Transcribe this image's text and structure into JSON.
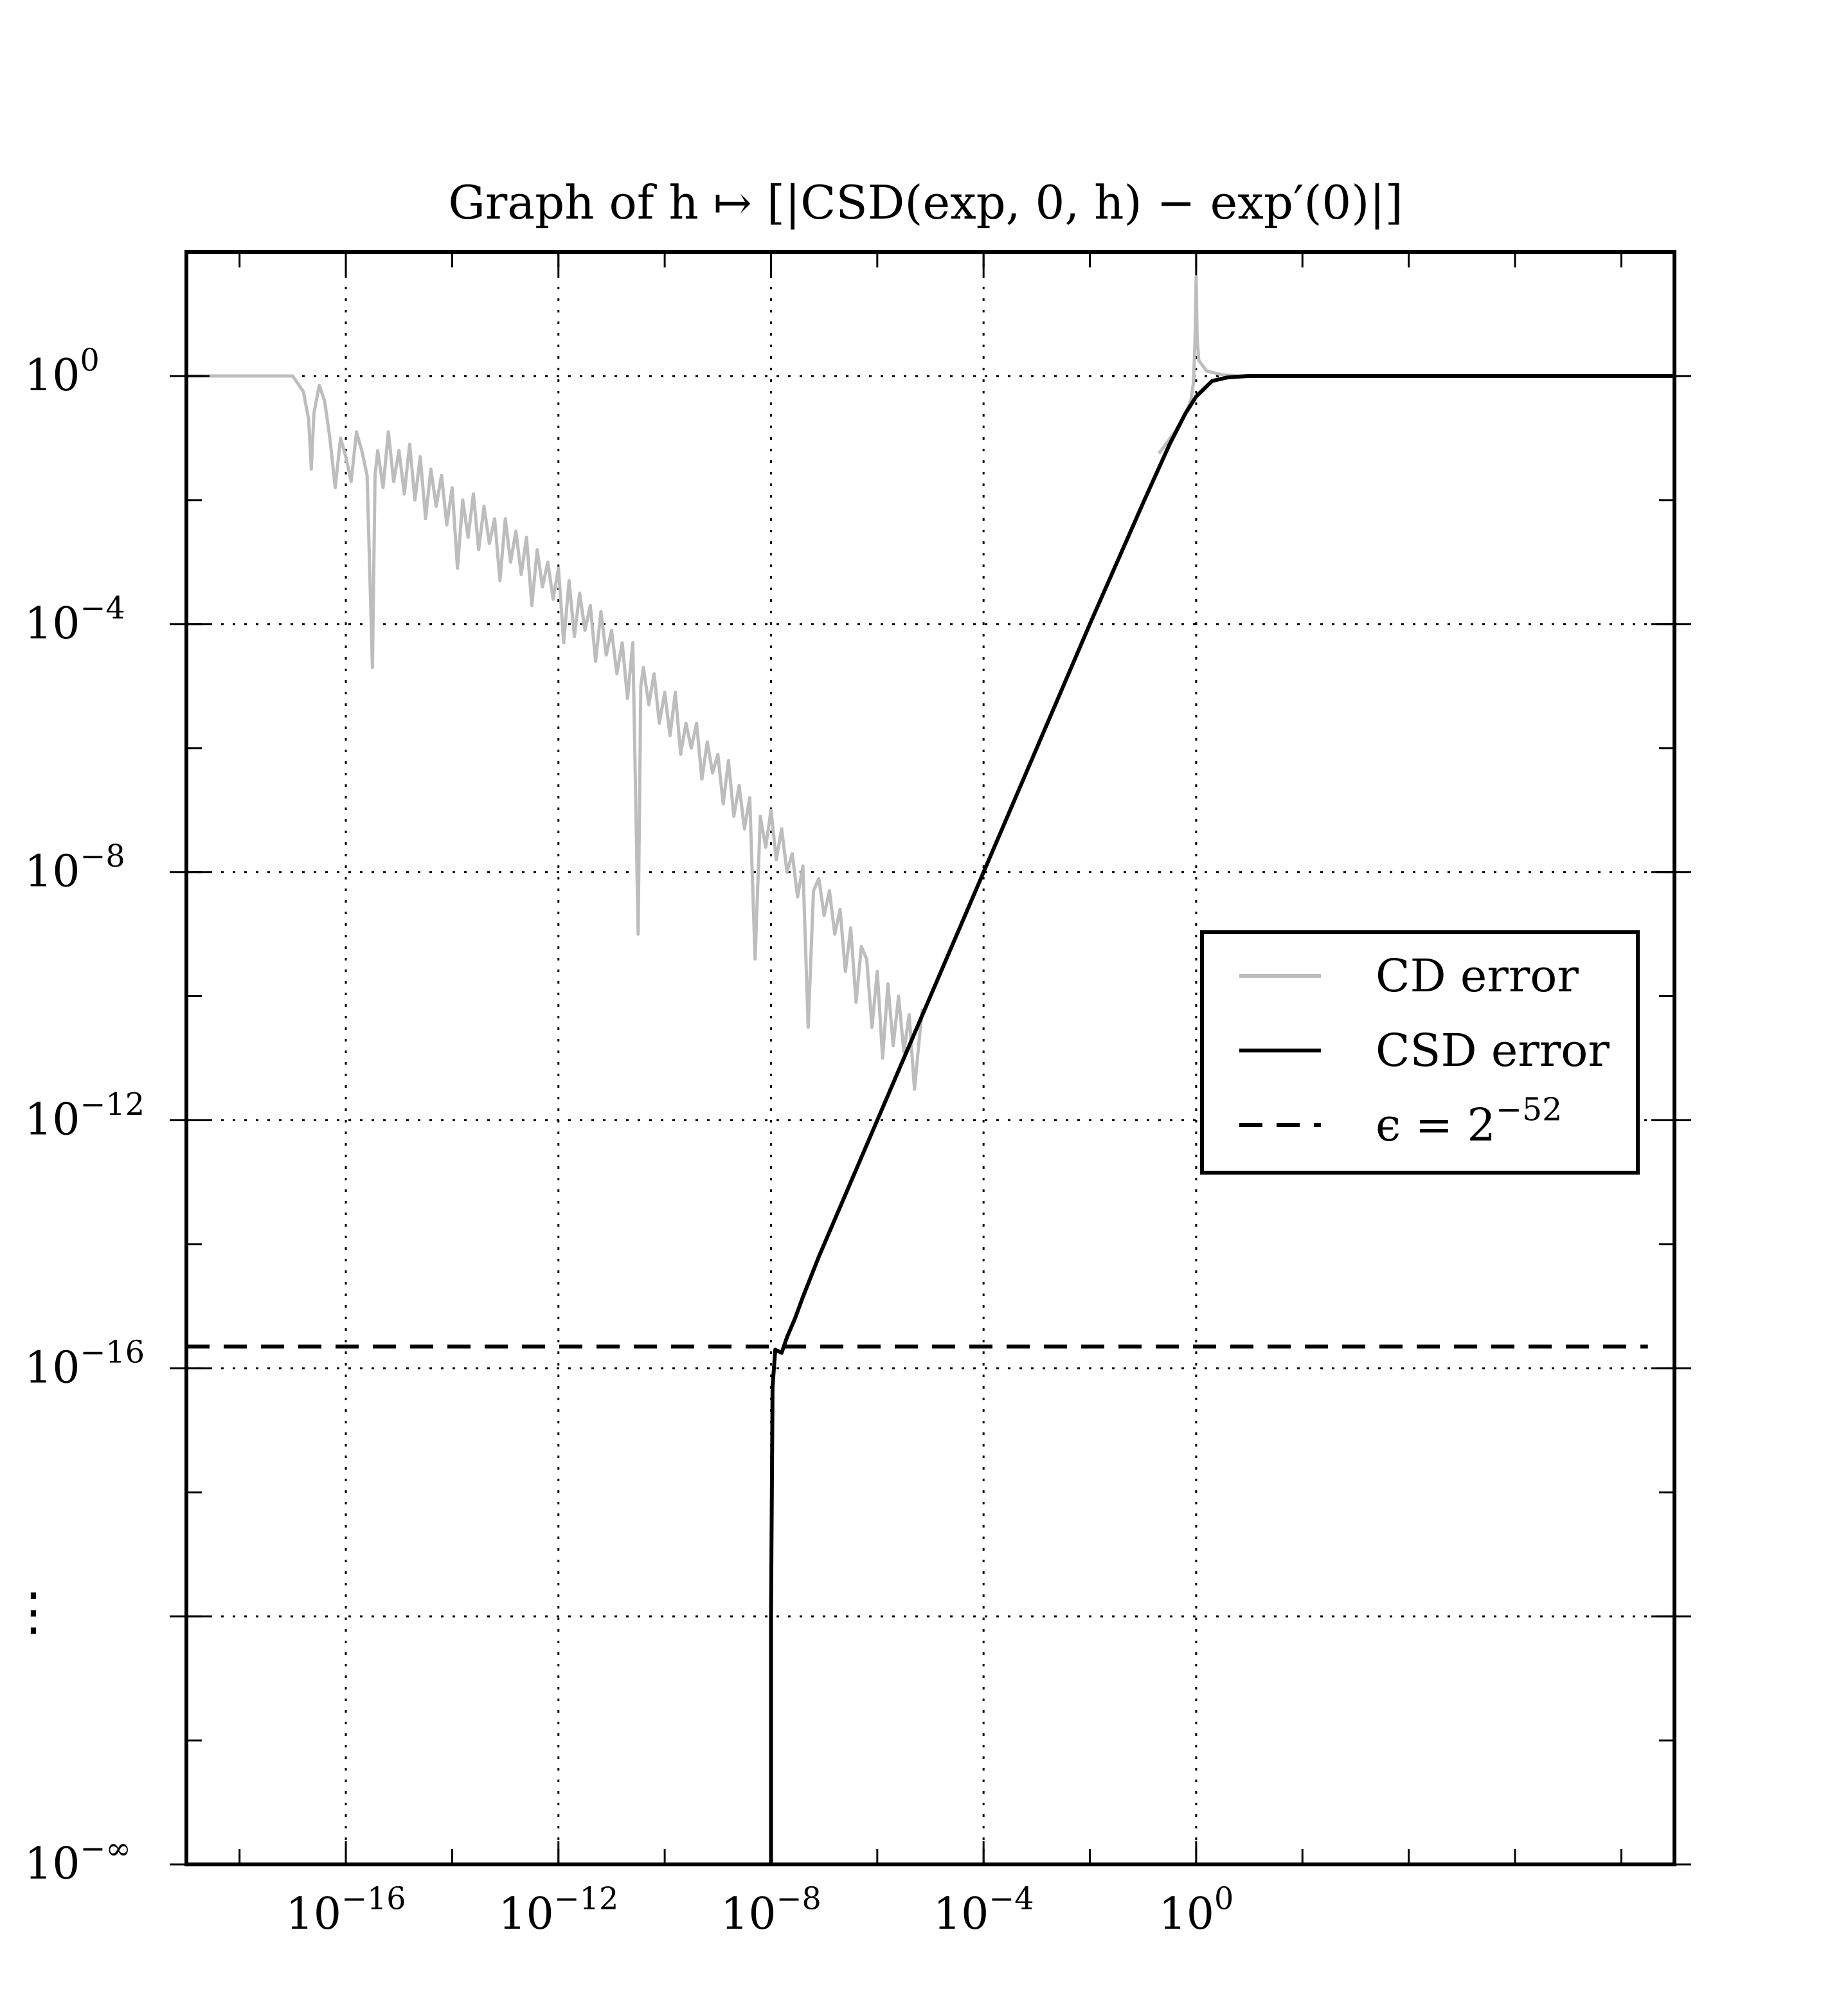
{
  "chart_data": {
    "type": "line",
    "title": "Graph of h ↦ [|CSD(exp, 0, h) − exp′(0)|]",
    "xlabel": "",
    "ylabel": "",
    "xscale": "log10",
    "yscale": "log10",
    "xlim": [
      -19,
      9
    ],
    "ylim": [
      -24,
      2
    ],
    "grid": true,
    "legend_position": "right-middle",
    "x_ticks": [
      {
        "value": -16,
        "base": "10",
        "exp": "−16"
      },
      {
        "value": -12,
        "base": "10",
        "exp": "−12"
      },
      {
        "value": -8,
        "base": "10",
        "exp": "−8"
      },
      {
        "value": -4,
        "base": "10",
        "exp": "−4"
      },
      {
        "value": 0,
        "base": "10",
        "exp": "0"
      }
    ],
    "y_ticks": [
      {
        "value": 0,
        "base": "10",
        "exp": "0"
      },
      {
        "value": -4,
        "base": "10",
        "exp": "−4"
      },
      {
        "value": -8,
        "base": "10",
        "exp": "−8"
      },
      {
        "value": -12,
        "base": "10",
        "exp": "−12"
      },
      {
        "value": -16,
        "base": "10",
        "exp": "−16"
      },
      {
        "value": -20,
        "base": "",
        "exp": "",
        "label": "⋮"
      },
      {
        "value": -24,
        "base": "10",
        "exp": "−∞"
      }
    ],
    "series": [
      {
        "name": "CD error",
        "color": "#bdbdbd",
        "style": "solid",
        "points": [
          [
            -19,
            0
          ],
          [
            -17.8,
            0
          ],
          [
            -17.0,
            0
          ],
          [
            -16.8,
            -0.25
          ],
          [
            -16.7,
            -0.7
          ],
          [
            -16.65,
            -1.5
          ],
          [
            -16.6,
            -0.6
          ],
          [
            -16.5,
            -0.15
          ],
          [
            -16.4,
            -0.4
          ],
          [
            -16.3,
            -1.0
          ],
          [
            -16.2,
            -1.8
          ],
          [
            -16.1,
            -1.0
          ],
          [
            -16.0,
            -1.3
          ],
          [
            -15.9,
            -1.7
          ],
          [
            -15.8,
            -0.9
          ],
          [
            -15.7,
            -1.2
          ],
          [
            -15.6,
            -1.6
          ],
          [
            -15.5,
            -4.7
          ],
          [
            -15.45,
            -1.6
          ],
          [
            -15.4,
            -1.2
          ],
          [
            -15.3,
            -1.8
          ],
          [
            -15.2,
            -0.9
          ],
          [
            -15.1,
            -1.7
          ],
          [
            -15.0,
            -1.2
          ],
          [
            -14.9,
            -1.9
          ],
          [
            -14.8,
            -1.1
          ],
          [
            -14.7,
            -2.0
          ],
          [
            -14.6,
            -1.3
          ],
          [
            -14.5,
            -2.3
          ],
          [
            -14.4,
            -1.5
          ],
          [
            -14.3,
            -2.1
          ],
          [
            -14.2,
            -1.6
          ],
          [
            -14.1,
            -2.4
          ],
          [
            -14.0,
            -1.8
          ],
          [
            -13.9,
            -3.1
          ],
          [
            -13.8,
            -2.0
          ],
          [
            -13.7,
            -2.6
          ],
          [
            -13.6,
            -1.9
          ],
          [
            -13.5,
            -2.8
          ],
          [
            -13.4,
            -2.1
          ],
          [
            -13.3,
            -2.7
          ],
          [
            -13.2,
            -2.3
          ],
          [
            -13.1,
            -3.3
          ],
          [
            -13.0,
            -2.3
          ],
          [
            -12.9,
            -3.0
          ],
          [
            -12.8,
            -2.5
          ],
          [
            -12.7,
            -3.2
          ],
          [
            -12.6,
            -2.6
          ],
          [
            -12.5,
            -3.7
          ],
          [
            -12.4,
            -2.8
          ],
          [
            -12.3,
            -3.4
          ],
          [
            -12.2,
            -3.0
          ],
          [
            -12.1,
            -3.6
          ],
          [
            -12.0,
            -3.1
          ],
          [
            -11.9,
            -4.3
          ],
          [
            -11.8,
            -3.3
          ],
          [
            -11.7,
            -4.2
          ],
          [
            -11.6,
            -3.5
          ],
          [
            -11.5,
            -4.1
          ],
          [
            -11.4,
            -3.7
          ],
          [
            -11.3,
            -4.6
          ],
          [
            -11.2,
            -3.8
          ],
          [
            -11.1,
            -4.5
          ],
          [
            -11.0,
            -4.1
          ],
          [
            -10.9,
            -4.8
          ],
          [
            -10.8,
            -4.3
          ],
          [
            -10.7,
            -5.2
          ],
          [
            -10.6,
            -4.3
          ],
          [
            -10.5,
            -9.0
          ],
          [
            -10.45,
            -5.0
          ],
          [
            -10.4,
            -4.7
          ],
          [
            -10.3,
            -5.3
          ],
          [
            -10.2,
            -4.8
          ],
          [
            -10.1,
            -5.6
          ],
          [
            -10.0,
            -5.1
          ],
          [
            -9.9,
            -5.8
          ],
          [
            -9.8,
            -5.1
          ],
          [
            -9.7,
            -6.1
          ],
          [
            -9.6,
            -5.6
          ],
          [
            -9.5,
            -6.0
          ],
          [
            -9.4,
            -5.6
          ],
          [
            -9.3,
            -6.5
          ],
          [
            -9.2,
            -5.9
          ],
          [
            -9.1,
            -6.4
          ],
          [
            -9.0,
            -6.1
          ],
          [
            -8.9,
            -6.9
          ],
          [
            -8.8,
            -6.2
          ],
          [
            -8.7,
            -7.1
          ],
          [
            -8.6,
            -6.6
          ],
          [
            -8.5,
            -7.3
          ],
          [
            -8.4,
            -6.8
          ],
          [
            -8.3,
            -9.4
          ],
          [
            -8.2,
            -7.1
          ],
          [
            -8.1,
            -7.6
          ],
          [
            -8.0,
            -7.0
          ],
          [
            -7.9,
            -7.8
          ],
          [
            -7.8,
            -7.3
          ],
          [
            -7.7,
            -8.0
          ],
          [
            -7.6,
            -7.7
          ],
          [
            -7.5,
            -8.4
          ],
          [
            -7.4,
            -7.9
          ],
          [
            -7.3,
            -10.5
          ],
          [
            -7.2,
            -8.3
          ],
          [
            -7.1,
            -8.1
          ],
          [
            -7.0,
            -8.7
          ],
          [
            -6.9,
            -8.3
          ],
          [
            -6.8,
            -9.0
          ],
          [
            -6.7,
            -8.6
          ],
          [
            -6.6,
            -9.6
          ],
          [
            -6.5,
            -8.9
          ],
          [
            -6.4,
            -10.1
          ],
          [
            -6.3,
            -9.2
          ],
          [
            -6.2,
            -9.4
          ],
          [
            -6.1,
            -10.5
          ],
          [
            -6.0,
            -9.6
          ],
          [
            -5.9,
            -11.0
          ],
          [
            -5.8,
            -9.8
          ],
          [
            -5.7,
            -10.8
          ],
          [
            -5.6,
            -10.0
          ],
          [
            -5.5,
            -10.9
          ],
          [
            -5.4,
            -10.3
          ],
          [
            -5.3,
            -11.5
          ],
          [
            -5.2,
            -10.6
          ],
          [
            -5.15,
            -10.2
          ]
        ]
      },
      {
        "name": "CD error",
        "color": "#bdbdbd",
        "style": "solid",
        "points": [
          [
            -0.7,
            -1.25
          ],
          [
            -0.4,
            -0.9
          ],
          [
            -0.2,
            -0.6
          ],
          [
            -0.1,
            -0.4
          ],
          [
            -0.05,
            -0.1
          ],
          [
            -0.02,
            0.6
          ],
          [
            0,
            1.6
          ],
          [
            0.02,
            0.6
          ],
          [
            0.05,
            0.25
          ],
          [
            0.2,
            0.08
          ],
          [
            0.5,
            0.02
          ],
          [
            0.8,
            0.0
          ],
          [
            9,
            0
          ]
        ]
      },
      {
        "name": "CSD error",
        "color": "#000000",
        "style": "solid",
        "points": [
          [
            -8.0,
            -24
          ],
          [
            -8.0,
            -20
          ],
          [
            -7.97,
            -16.3
          ],
          [
            -7.92,
            -15.7
          ],
          [
            -7.8,
            -15.75
          ],
          [
            -7.7,
            -15.5
          ],
          [
            -7.55,
            -15.2
          ],
          [
            -7.4,
            -14.85
          ],
          [
            -7.1,
            -14.2
          ],
          [
            -6,
            -12.0
          ],
          [
            -4,
            -8.0
          ],
          [
            -2,
            -4.0
          ],
          [
            -1.0,
            -2.05
          ],
          [
            -0.5,
            -1.1
          ],
          [
            -0.2,
            -0.6
          ],
          [
            0,
            -0.33
          ],
          [
            0.3,
            -0.08
          ],
          [
            0.6,
            -0.02
          ],
          [
            1.0,
            0
          ],
          [
            9,
            0
          ]
        ]
      },
      {
        "name": "ϵ = 2⁻⁵²",
        "color": "#000000",
        "style": "dashed",
        "points": [
          [
            -19,
            -15.65
          ],
          [
            8.5,
            -15.65
          ]
        ]
      }
    ],
    "legend": [
      {
        "label": "CD error",
        "color": "#bdbdbd",
        "style": "solid"
      },
      {
        "label": "CSD error",
        "color": "#000000",
        "style": "solid"
      },
      {
        "label": "ϵ = 2",
        "sup": "−52",
        "color": "#000000",
        "style": "dashed"
      }
    ]
  }
}
